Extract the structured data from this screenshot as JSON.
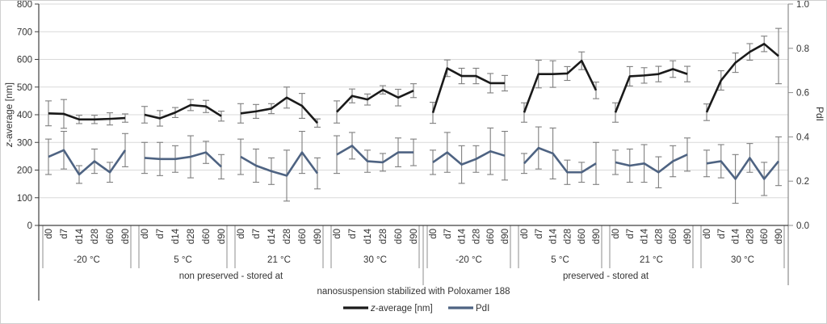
{
  "colors": {
    "grid": "#d9d9d9",
    "axis_dark": "#404040",
    "axis_gray": "#8c8c8c",
    "error_bar": "#7f7f7f",
    "z_line": "#1a1a1a",
    "pdi_line": "#4e6382",
    "text": "#333333"
  },
  "chart_data": {
    "type": "line",
    "footer": "nanosuspension stabilized with Poloxamer 188",
    "x_categories": [
      "d0",
      "d7",
      "d14",
      "d28",
      "d60",
      "d90"
    ],
    "left_axis": {
      "label_italic": "z",
      "label_rest": "-average [nm]",
      "min": 0,
      "max": 800,
      "tick_values": [
        0,
        100,
        200,
        300,
        400,
        500,
        600,
        700,
        800
      ],
      "tick_labels": [
        "0",
        "100",
        "200",
        "300",
        "400",
        "500",
        "600",
        "700",
        "800"
      ]
    },
    "right_axis": {
      "label": "PdI",
      "min": 0.0,
      "max": 1.0,
      "tick_values": [
        0.0,
        0.2,
        0.4,
        0.6,
        0.8,
        1.0
      ],
      "tick_labels": [
        "0.0",
        "0.2",
        "0.4",
        "0.6",
        "0.8",
        "1.0"
      ]
    },
    "legend": [
      {
        "label_italic": "z",
        "label_rest": "-average [nm]",
        "color": "#1a1a1a"
      },
      {
        "label": "PdI",
        "color": "#4e6382"
      }
    ],
    "sections": [
      {
        "label": "non preserved - stored at",
        "groups": [
          {
            "temp": "-20 °C",
            "z_average": [
              405,
              403,
              383,
              383,
              385,
              388
            ],
            "z_err": [
              45,
              52,
              15,
              15,
              22,
              15
            ],
            "pdi": [
              0.31,
              0.34,
              0.23,
              0.29,
              0.24,
              0.34
            ],
            "pdi_err": [
              0.08,
              0.085,
              0.04,
              0.055,
              0.045,
              0.075
            ]
          },
          {
            "temp": "5 °C",
            "z_average": [
              400,
              387,
              408,
              435,
              430,
              395
            ],
            "z_err": [
              30,
              28,
              18,
              20,
              22,
              18
            ],
            "pdi": [
              0.305,
              0.3,
              0.3,
              0.31,
              0.33,
              0.265
            ],
            "pdi_err": [
              0.07,
              0.075,
              0.06,
              0.095,
              0.05,
              0.055
            ]
          },
          {
            "temp": "21 °C",
            "z_average": [
              405,
              412,
              422,
              462,
              432,
              370
            ],
            "z_err": [
              35,
              25,
              18,
              38,
              45,
              15
            ],
            "pdi": [
              0.31,
              0.27,
              0.245,
              0.225,
              0.33,
              0.235
            ],
            "pdi_err": [
              0.08,
              0.075,
              0.06,
              0.115,
              0.095,
              0.07
            ]
          },
          {
            "temp": "30 °C",
            "z_average": [
              410,
              468,
              455,
              490,
              462,
              487
            ],
            "z_err": [
              40,
              25,
              20,
              15,
              30,
              25
            ],
            "pdi": [
              0.32,
              0.36,
              0.29,
              0.285,
              0.33,
              0.33
            ],
            "pdi_err": [
              0.085,
              0.06,
              0.05,
              0.04,
              0.065,
              0.06
            ]
          }
        ]
      },
      {
        "label": "preserved - stored at",
        "groups": [
          {
            "temp": "-20 °C",
            "z_average": [
              407,
              568,
              540,
              540,
              514,
              514
            ],
            "z_err": [
              38,
              30,
              28,
              28,
              35,
              28
            ],
            "pdi": [
              0.285,
              0.33,
              0.275,
              0.3,
              0.335,
              0.315
            ],
            "pdi_err": [
              0.055,
              0.09,
              0.085,
              0.06,
              0.105,
              0.11
            ]
          },
          {
            "temp": "5 °C",
            "z_average": [
              408,
              547,
              547,
              549,
              595,
              488
            ],
            "z_err": [
              35,
              50,
              48,
              25,
              32,
              30
            ],
            "pdi": [
              0.28,
              0.35,
              0.325,
              0.24,
              0.24,
              0.28
            ],
            "pdi_err": [
              0.045,
              0.095,
              0.115,
              0.055,
              0.045,
              0.095
            ]
          },
          {
            "temp": "21 °C",
            "z_average": [
              408,
              539,
              542,
              547,
              565,
              547
            ],
            "z_err": [
              35,
              35,
              28,
              28,
              30,
              28
            ],
            "pdi": [
              0.285,
              0.27,
              0.28,
              0.24,
              0.29,
              0.32
            ],
            "pdi_err": [
              0.055,
              0.075,
              0.085,
              0.07,
              0.07,
              0.075
            ]
          },
          {
            "temp": "30 °C",
            "z_average": [
              409,
              524,
              588,
              627,
              656,
              612
            ],
            "z_err": [
              30,
              35,
              35,
              30,
              28,
              100
            ],
            "pdi": [
              0.28,
              0.29,
              0.21,
              0.305,
              0.21,
              0.29
            ],
            "pdi_err": [
              0.06,
              0.075,
              0.11,
              0.065,
              0.075,
              0.11
            ]
          }
        ]
      }
    ]
  }
}
